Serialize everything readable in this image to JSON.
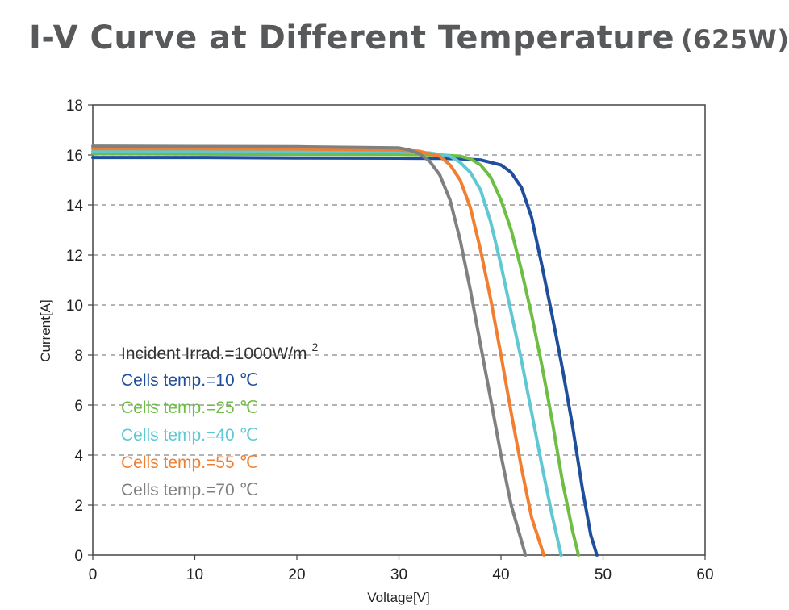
{
  "chart_data": {
    "type": "line",
    "title": "I-V Curve at Different Temperature",
    "title_suffix": "(625W)",
    "xlabel": "Voltage[V]",
    "ylabel": "Current[A]",
    "xlim": [
      0,
      60
    ],
    "ylim": [
      0,
      18
    ],
    "xticks": [
      0,
      10,
      20,
      30,
      40,
      50,
      60
    ],
    "yticks": [
      0,
      2,
      4,
      6,
      8,
      10,
      12,
      14,
      16,
      18
    ],
    "grid": "horizontal-dashed",
    "legend_placement": "left-center",
    "legend_header": "Incident Irrad.=1000W/m",
    "legend_header_sup": "2",
    "series": [
      {
        "name": "Cells temp.=10 ℃",
        "color": "#1f4e9c",
        "x": [
          0,
          10,
          20,
          30,
          34,
          36,
          38,
          40,
          41,
          42,
          43,
          44,
          45,
          46,
          47,
          48,
          48.8,
          49.4
        ],
        "y": [
          15.9,
          15.9,
          15.88,
          15.87,
          15.86,
          15.85,
          15.8,
          15.6,
          15.3,
          14.7,
          13.5,
          11.6,
          9.6,
          7.5,
          5.2,
          2.6,
          0.8,
          0
        ]
      },
      {
        "name": "Cells temp.=25 ℃",
        "color": "#6ebe44",
        "x": [
          0,
          10,
          20,
          30,
          34,
          36,
          37,
          38,
          39,
          40,
          41,
          42,
          43,
          44,
          45,
          46,
          47,
          47.6
        ],
        "y": [
          16.05,
          16.04,
          16.03,
          16.02,
          16.0,
          15.95,
          15.85,
          15.6,
          15.1,
          14.2,
          13.0,
          11.4,
          9.6,
          7.6,
          5.4,
          3.0,
          1.0,
          0
        ]
      },
      {
        "name": "Cells temp.=40 ℃",
        "color": "#5fc8d3",
        "x": [
          0,
          10,
          20,
          30,
          33,
          35,
          36,
          37,
          38,
          39,
          40,
          41,
          42,
          43,
          44,
          45,
          45.9
        ],
        "y": [
          16.15,
          16.15,
          16.14,
          16.12,
          16.08,
          15.95,
          15.7,
          15.3,
          14.6,
          13.3,
          11.6,
          9.7,
          7.8,
          5.7,
          3.6,
          1.6,
          0
        ]
      },
      {
        "name": "Cells temp.=55 ℃",
        "color": "#f07f32",
        "x": [
          0,
          10,
          20,
          30,
          32,
          34,
          35,
          36,
          37,
          38,
          39,
          40,
          41,
          42,
          43,
          44.2
        ],
        "y": [
          16.25,
          16.25,
          16.24,
          16.2,
          16.15,
          15.95,
          15.6,
          15.0,
          13.9,
          12.2,
          10.2,
          8.0,
          5.7,
          3.5,
          1.5,
          0
        ]
      },
      {
        "name": "Cells temp.=70 ℃",
        "color": "#808080",
        "x": [
          0,
          10,
          20,
          30,
          31,
          32,
          33,
          34,
          35,
          36,
          37,
          38,
          39,
          40,
          41,
          42.4
        ],
        "y": [
          16.35,
          16.34,
          16.33,
          16.28,
          16.2,
          16.05,
          15.75,
          15.2,
          14.2,
          12.6,
          10.6,
          8.4,
          6.2,
          4.0,
          2.0,
          0
        ]
      }
    ]
  }
}
